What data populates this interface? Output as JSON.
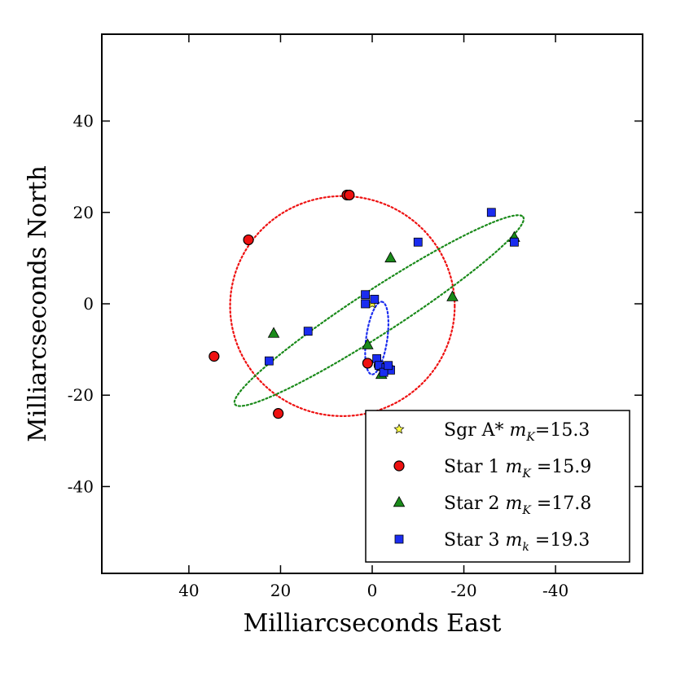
{
  "chart_data": {
    "type": "scatter",
    "xlabel": "Milliarcseconds East",
    "ylabel": "Milliarcseconds North",
    "xlim": [
      59,
      -59
    ],
    "ylim": [
      -59,
      59
    ],
    "xticks": [
      40,
      20,
      0,
      -20,
      -40
    ],
    "xtick_labels": [
      "40",
      "20",
      "0",
      "-20",
      "-40"
    ],
    "yticks": [
      40,
      20,
      0,
      -20,
      -40
    ],
    "ytick_labels": [
      "40",
      "20",
      "0",
      "-20",
      "-40"
    ],
    "grid": false,
    "legend_placement": "bottom-right",
    "series": [
      {
        "name": "Sgr A*",
        "legend_label": {
          "prefix": "Sgr A* ",
          "var": "m",
          "sub": "K",
          "value": "=15.3"
        },
        "marker": "star",
        "color": "#ffff44",
        "x": [
          0
        ],
        "y": [
          0
        ]
      },
      {
        "name": "Star 1",
        "legend_label": {
          "prefix": "Star 1 ",
          "var": "m",
          "sub": "K",
          "value": " =15.9"
        },
        "marker": "circle",
        "color": "#ee1111",
        "x": [
          34.5,
          27.0,
          5.5,
          5.0,
          20.5,
          1.0,
          -1.5,
          -3.5
        ],
        "y": [
          -11.5,
          14.0,
          23.8,
          23.8,
          -24.0,
          -13.0,
          -13.5,
          -14.0
        ]
      },
      {
        "name": "Star 2",
        "legend_label": {
          "prefix": "Star 2 ",
          "var": "m",
          "sub": "K",
          "value": " =17.8"
        },
        "marker": "triangle",
        "color": "#1a8a1a",
        "x": [
          -31.0,
          -17.5,
          -4.0,
          21.5,
          1.0,
          -2.0
        ],
        "y": [
          14.5,
          1.5,
          10.0,
          -6.5,
          -9.0,
          -15.5
        ]
      },
      {
        "name": "Star 3",
        "legend_label": {
          "prefix": "Star 3 ",
          "var": "m",
          "sub": "k",
          "value": " =19.3"
        },
        "marker": "square",
        "color": "#1a2cf0",
        "x": [
          -26.0,
          -31.0,
          -10.0,
          1.5,
          1.5,
          -0.5,
          14.0,
          22.5,
          -1.0,
          -1.5,
          -3.0,
          -4.0,
          -2.5,
          -3.5
        ],
        "y": [
          20.0,
          13.5,
          13.5,
          2.0,
          0.0,
          1.0,
          -6.0,
          -12.5,
          -12.0,
          -13.5,
          -14.0,
          -14.5,
          -15.0,
          -13.5
        ]
      }
    ],
    "orbits": [
      {
        "series": "Star 1",
        "color": "#ee1111",
        "center": [
          6.5,
          -0.5
        ],
        "semi_axes": [
          24.5,
          24.0
        ],
        "rotation_deg": 0
      },
      {
        "series": "Star 2",
        "color": "#1a8a1a",
        "center": [
          -1.5,
          -1.5
        ],
        "semi_axes": [
          37.5,
          4.8
        ],
        "rotation_deg": 33
      },
      {
        "series": "Sgr A*",
        "color": "#1a2cf0",
        "center": [
          -1.0,
          -7.5
        ],
        "semi_axes": [
          8.0,
          2.3
        ],
        "rotation_deg": 82
      }
    ]
  }
}
